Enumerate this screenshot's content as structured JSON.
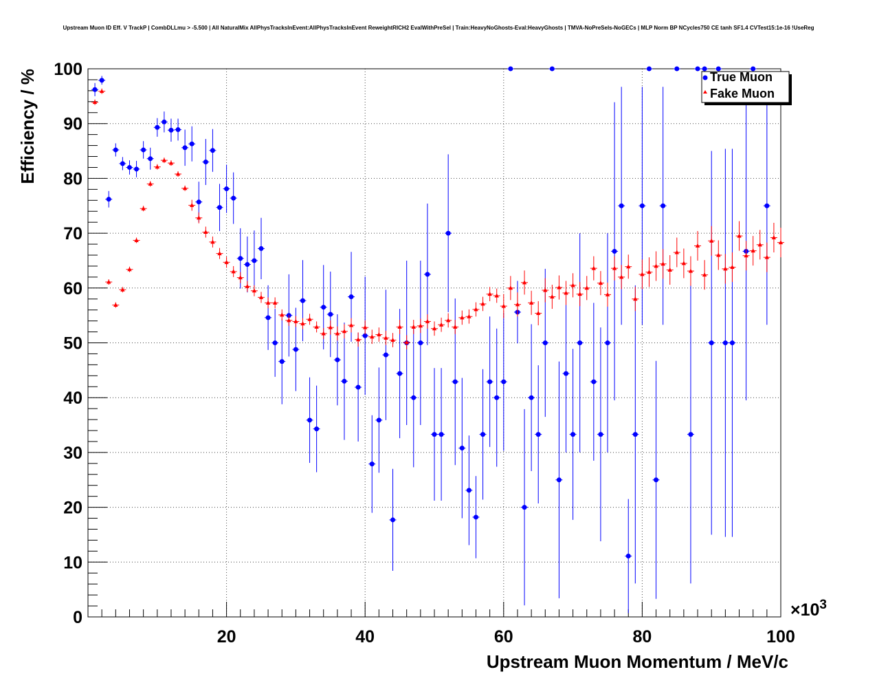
{
  "chart_data": {
    "type": "scatter",
    "title": "Upstream Muon ID Eff. V TrackP | CombDLLmu > -5.500 | All NaturalMix AllPhysTracksInEvent:AllPhysTracksInEvent ReweightRICH2 EvalWithPreSel | Train:HeavyNoGhosts-Eval:HeavyGhosts | TMVA-NoPreSels-NoGECs | MLP Norm BP NCycles750 CE tanh SF1.4 CVTest15:1e-16 !UseReg",
    "xlabel": "Upstream Muon Momentum / MeV/c",
    "ylabel": "Efficiency / %",
    "x_exponent_label": "×10",
    "x_exponent_power": "3",
    "xlim": [
      0,
      100
    ],
    "ylim": [
      0,
      100
    ],
    "x_tick_labels": [
      "20",
      "40",
      "60",
      "80",
      "100"
    ],
    "y_tick_labels": [
      "0",
      "10",
      "20",
      "30",
      "40",
      "50",
      "60",
      "70",
      "80",
      "90",
      "100"
    ],
    "grid": true,
    "legend_position": "top-right",
    "colors": {
      "true_muon": "#0000ff",
      "fake_muon": "#ff0000"
    },
    "series": [
      {
        "name": "True Muon",
        "marker": "circle",
        "x": [
          1,
          2,
          3,
          4,
          5,
          6,
          7,
          8,
          9,
          10,
          11,
          12,
          13,
          14,
          15,
          16,
          17,
          18,
          19,
          20,
          21,
          22,
          23,
          24,
          25,
          26,
          27,
          28,
          29,
          30,
          31,
          32,
          33,
          34,
          35,
          36,
          37,
          38,
          39,
          40,
          41,
          42,
          43,
          44,
          45,
          46,
          47,
          48,
          49,
          50,
          51,
          52,
          53,
          54,
          55,
          56,
          57,
          58,
          59,
          60,
          61,
          62,
          63,
          64,
          65,
          66,
          67,
          68,
          69,
          70,
          71,
          73,
          74,
          75,
          76,
          77,
          78,
          79,
          80,
          81,
          82,
          83,
          85,
          87,
          88,
          89,
          90,
          91,
          92,
          93,
          95,
          96,
          98
        ],
        "y": [
          96.2,
          97.9,
          76.2,
          85.2,
          82.7,
          82,
          81.7,
          85.2,
          83.6,
          89.3,
          90.3,
          88.8,
          88.9,
          85.6,
          86.3,
          75.7,
          83,
          85.1,
          74.7,
          78.1,
          76.4,
          65.4,
          64.3,
          65,
          67.2,
          54.6,
          50,
          46.6,
          55,
          48.8,
          57.7,
          35.9,
          34.3,
          56.5,
          55.2,
          46.9,
          43,
          58.4,
          41.9,
          51.3,
          27.9,
          35.9,
          47.8,
          17.7,
          44.4,
          50,
          40,
          50,
          62.5,
          33.3,
          33.3,
          70,
          42.9,
          30.8,
          23.1,
          18.2,
          33.3,
          42.9,
          40,
          42.9,
          100,
          55.6,
          20,
          40,
          33.3,
          50,
          100,
          25,
          44.4,
          33.3,
          50,
          42.9,
          33.3,
          50,
          66.7,
          75,
          11.1,
          33.3,
          75,
          100,
          25,
          75,
          100,
          33.3,
          100,
          100,
          50,
          100,
          50,
          50,
          66.7,
          100,
          75
        ],
        "err": [
          1.2,
          0.8,
          1.5,
          1.2,
          1.2,
          1.3,
          1.5,
          1.6,
          2,
          1.7,
          1.9,
          2.1,
          2,
          3.3,
          3.2,
          3.7,
          4.2,
          3.9,
          4.3,
          4.4,
          4.7,
          5.5,
          5.1,
          5.5,
          5.6,
          5.9,
          6.2,
          7.8,
          7.5,
          7.6,
          7.4,
          7.8,
          7.9,
          7.7,
          7.8,
          8.3,
          10.7,
          8.2,
          9.9,
          10.8,
          8.9,
          9.6,
          11.9,
          9.3,
          11.8,
          15,
          12.7,
          15,
          12.9,
          12.1,
          12.1,
          14.4,
          15.2,
          12.8,
          10,
          7.5,
          11.9,
          11.9,
          12.6,
          12.6,
          0.1,
          5.7,
          17.9,
          13.4,
          12.6,
          13.5,
          0.1,
          21.6,
          14.4,
          15.6,
          20,
          14.4,
          19.5,
          20,
          27.2,
          21.7,
          10.4,
          27.2,
          21.7,
          0.1,
          21.7,
          21.7,
          0.1,
          27.2,
          0.1,
          0.1,
          35,
          0.1,
          35.4,
          35.4,
          27.2,
          0.1,
          21.7
        ]
      },
      {
        "name": "Fake Muon",
        "marker": "triangle",
        "x": [
          1,
          2,
          3,
          4,
          5,
          6,
          7,
          8,
          9,
          10,
          11,
          12,
          13,
          14,
          15,
          16,
          17,
          18,
          19,
          20,
          21,
          22,
          23,
          24,
          25,
          26,
          27,
          28,
          29,
          30,
          31,
          32,
          33,
          34,
          35,
          36,
          37,
          38,
          39,
          40,
          41,
          42,
          43,
          44,
          45,
          46,
          47,
          48,
          49,
          50,
          51,
          52,
          53,
          54,
          55,
          56,
          57,
          58,
          59,
          60,
          61,
          62,
          63,
          64,
          65,
          66,
          67,
          68,
          69,
          70,
          71,
          72,
          73,
          74,
          75,
          76,
          77,
          78,
          79,
          80,
          81,
          82,
          83,
          84,
          85,
          86,
          87,
          88,
          89,
          90,
          91,
          92,
          93,
          94,
          95,
          96,
          97,
          98,
          99,
          100
        ],
        "y": [
          93.9,
          95.9,
          61.1,
          56.9,
          59.7,
          63.4,
          68.7,
          74.5,
          79,
          82.1,
          83.3,
          82.8,
          80.8,
          78.2,
          75.1,
          72.8,
          70.2,
          68.4,
          66.3,
          64.7,
          63,
          61.9,
          60.3,
          59.5,
          58.3,
          57.3,
          57.3,
          55.1,
          54.1,
          53.9,
          53.5,
          54.3,
          52.9,
          51.7,
          52.8,
          51.7,
          52.1,
          53.2,
          50.6,
          52.8,
          51.1,
          51.5,
          50.9,
          50.5,
          52.9,
          50.1,
          52.9,
          53.1,
          53.9,
          52.6,
          53.3,
          54.1,
          52.9,
          54.6,
          54.8,
          56.1,
          57.1,
          58.9,
          58.6,
          56.7,
          60,
          57,
          61,
          57.3,
          55.4,
          59.6,
          58.4,
          60.1,
          59.1,
          60.5,
          58.9,
          60,
          63.6,
          60.9,
          58.8,
          63.6,
          62,
          63.9,
          58,
          62.5,
          62.9,
          64,
          64.4,
          63.3,
          66.5,
          64.5,
          63.1,
          67.7,
          62.4,
          68.6,
          66,
          63.5,
          63.8,
          69.5,
          65.9,
          66.8,
          67.9,
          65.6,
          69.2,
          68.3
        ]
      }
    ]
  }
}
